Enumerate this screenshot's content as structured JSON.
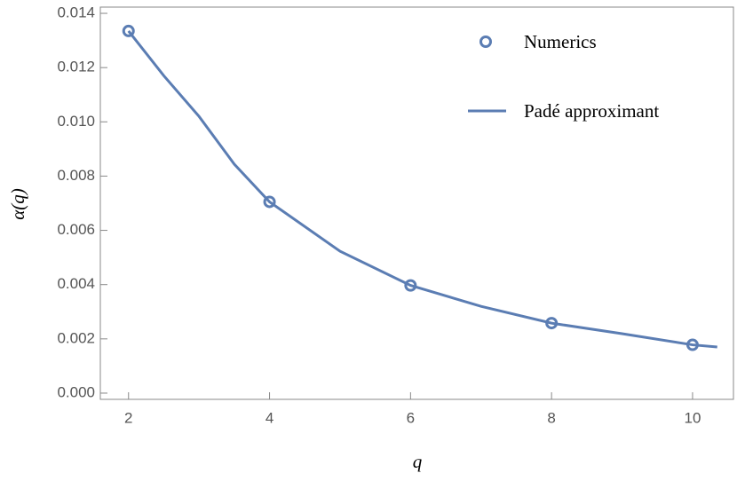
{
  "chart_data": {
    "type": "line",
    "xlabel": "q",
    "ylabel": "α(q)",
    "xlim": [
      1.6,
      10.58
    ],
    "ylim": [
      -0.00023,
      0.01423
    ],
    "xticks": [
      2,
      4,
      6,
      8,
      10
    ],
    "yticks": [
      {
        "value": 0,
        "label": "0.000"
      },
      {
        "value": 0.002,
        "label": "0.002"
      },
      {
        "value": 0.004,
        "label": "0.004"
      },
      {
        "value": 0.006,
        "label": "0.006"
      },
      {
        "value": 0.008,
        "label": "0.008"
      },
      {
        "value": 0.01,
        "label": "0.010"
      },
      {
        "value": 0.012,
        "label": "0.012"
      },
      {
        "value": 0.014,
        "label": "0.014"
      }
    ],
    "legend": "upper right",
    "series": [
      {
        "name": "Numerics",
        "style": "markers",
        "color": "#5b7db3",
        "x": [
          2,
          4,
          6,
          8,
          10
        ],
        "values": [
          0.01335,
          0.00705,
          0.00397,
          0.00258,
          0.00178
        ]
      },
      {
        "name": "Padé approximant",
        "style": "line",
        "color": "#5b7db3",
        "x": [
          2,
          2.5,
          3,
          3.5,
          4,
          5,
          6,
          7,
          8,
          9,
          10,
          10.35
        ],
        "values": [
          0.01335,
          0.0117,
          0.0102,
          0.00844,
          0.00705,
          0.00523,
          0.00397,
          0.0032,
          0.00258,
          0.00219,
          0.00178,
          0.0017
        ]
      }
    ]
  }
}
